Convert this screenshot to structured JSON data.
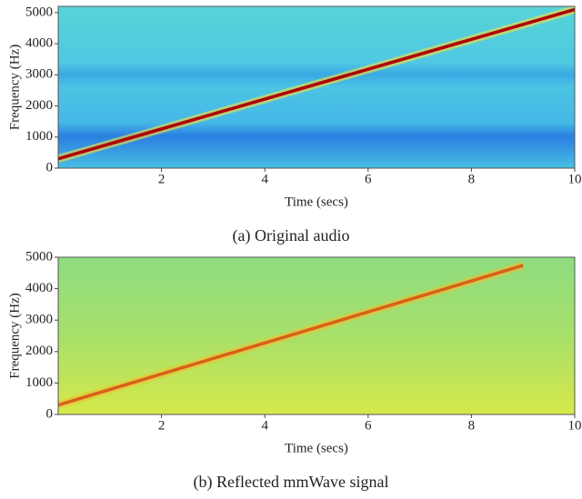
{
  "chart_data": [
    {
      "type": "spectrogram",
      "caption": "(a) Original audio",
      "x_label": "Time (secs)",
      "y_label": "Frequency (Hz)",
      "xlim": [
        0,
        10
      ],
      "ylim": [
        0,
        5200
      ],
      "xticks": [
        2,
        4,
        6,
        8,
        10
      ],
      "yticks": [
        0,
        1000,
        2000,
        3000,
        4000,
        5000
      ],
      "x": [
        0,
        10
      ],
      "values": [
        300,
        5100
      ],
      "color": "#b00000"
    },
    {
      "type": "spectrogram",
      "caption": "(b) Reflected mmWave signal",
      "x_label": "Time (secs)",
      "y_label": "Frequency (Hz)",
      "xlim": [
        0,
        10
      ],
      "ylim": [
        0,
        5000
      ],
      "xticks": [
        2,
        4,
        6,
        8,
        10
      ],
      "yticks": [
        0,
        1000,
        2000,
        3000,
        4000,
        5000
      ],
      "x": [
        0,
        9
      ],
      "values": [
        300,
        4740
      ],
      "color": "#d8601a"
    }
  ]
}
